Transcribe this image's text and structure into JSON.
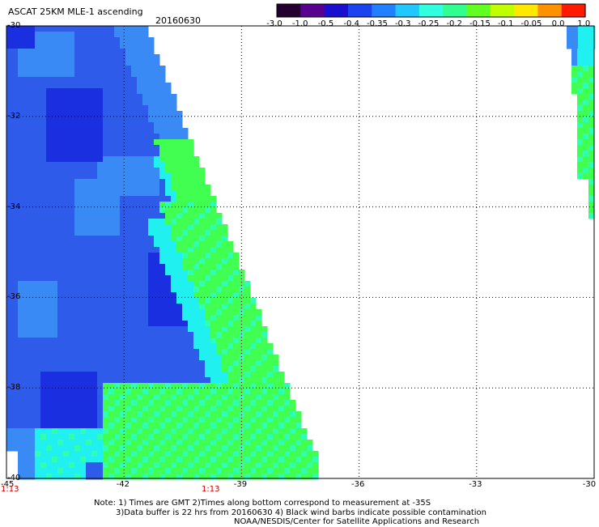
{
  "header": {
    "title": "ASCAT 25KM MLE-1 ascending",
    "date": "20160630"
  },
  "colorbar": {
    "labels": [
      "-3.0",
      "-1.0",
      "-0.5",
      "-0.4",
      "-0.35",
      "-0.3",
      "-0.25",
      "-0.2",
      "-0.15",
      "-0.1",
      "-0.05",
      "0.0",
      "1.0"
    ],
    "colors": [
      "#230030",
      "#5a0090",
      "#1a0fd0",
      "#1a44f0",
      "#2080ff",
      "#20c8ff",
      "#30ffe0",
      "#30ff90",
      "#60ff20",
      "#c0ff00",
      "#ffe800",
      "#ff9000",
      "#ff1a00"
    ]
  },
  "map": {
    "lat_labels": [
      "-30",
      "-32",
      "-34",
      "-36",
      "-38",
      "-40"
    ],
    "lon_labels": [
      "-45",
      "-42",
      "-39",
      "-36",
      "-33",
      "-30"
    ],
    "time_labels": [
      "1:13",
      "1:13"
    ],
    "lat_range": [
      -40,
      -30
    ],
    "lon_range": [
      -45,
      -30
    ],
    "palette": {
      "deep_blue": "#1a2fe0",
      "blue": "#2f5bea",
      "light_blue": "#3a8af5",
      "cyan": "#20f0f0",
      "aqua_green": "#30ffb0",
      "green": "#40ff50"
    }
  },
  "notes": {
    "line1": "Note: 1) Times are GMT 2)Times along bottom correspond to measurement at -35S",
    "line2": "3)Data buffer is 22 hrs from 20160630 4) Black wind barbs indicate possible contamination",
    "line3": "NOAA/NESDIS/Center for Satellite Applications and Research"
  }
}
